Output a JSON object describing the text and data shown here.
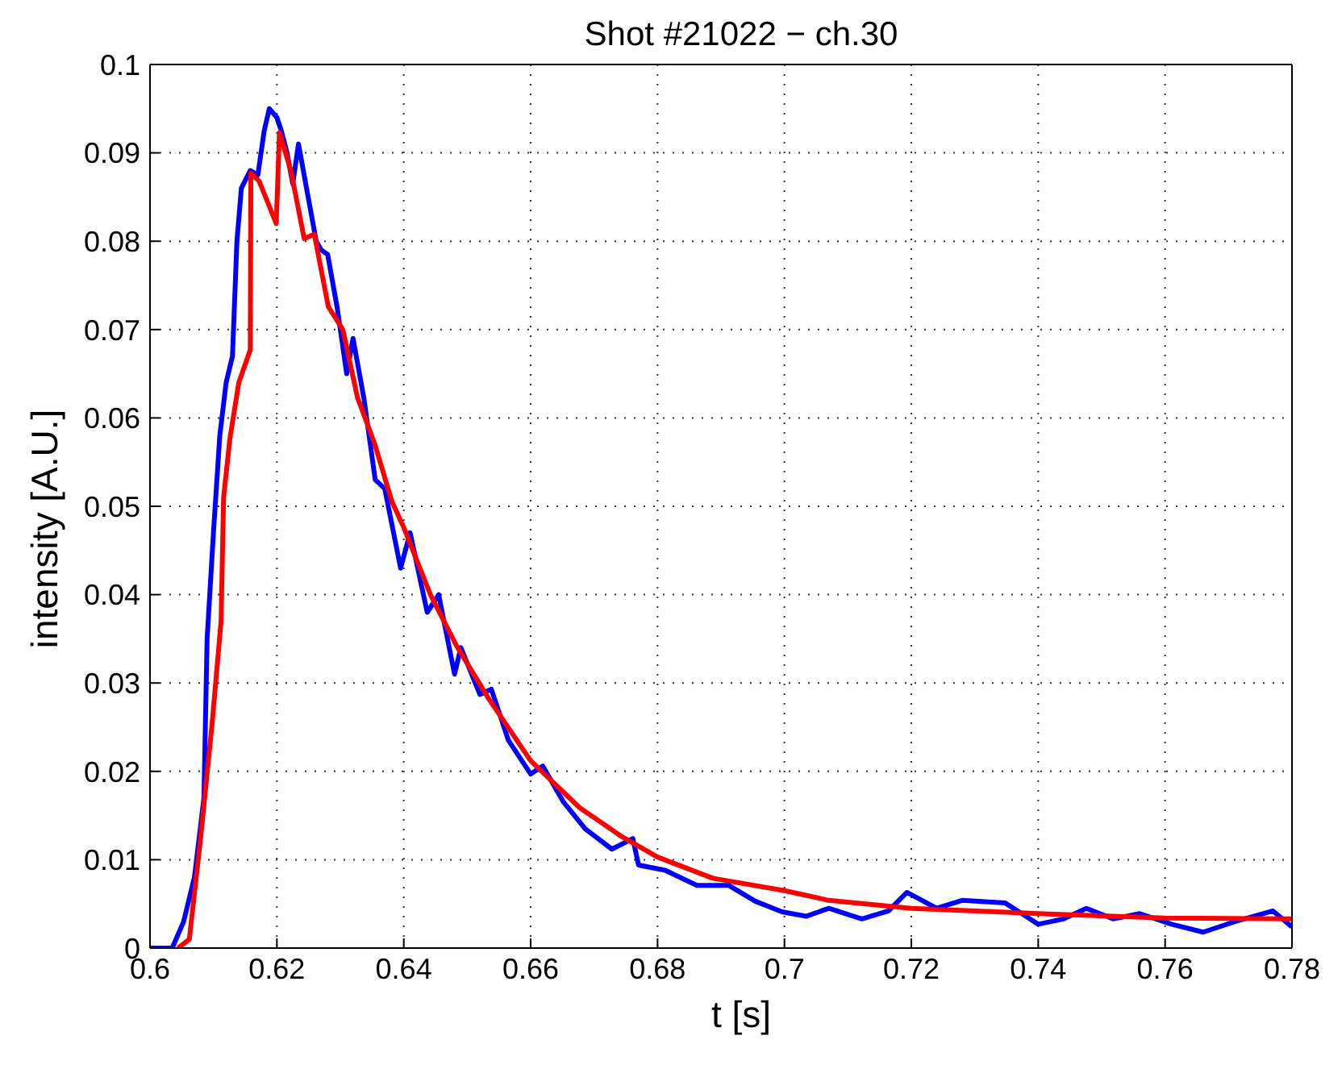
{
  "chart_data": {
    "type": "line",
    "title": "Shot #21022 − ch.30",
    "xlabel": "t [s]",
    "ylabel": "intensity [A.U.]",
    "xlim": [
      0.6,
      0.78
    ],
    "xticks": [
      0.6,
      0.62,
      0.64,
      0.66,
      0.68,
      0.7,
      0.72,
      0.74,
      0.76,
      0.78
    ],
    "ylim": [
      0,
      0.1
    ],
    "yticks": [
      0,
      0.01,
      0.02,
      0.03,
      0.04,
      0.05,
      0.06,
      0.07,
      0.08,
      0.09,
      0.1
    ],
    "grid": true,
    "legend": false,
    "marker": "none",
    "line_style": "solid",
    "series": [
      {
        "color": "#0000ff",
        "x": [
          0.6,
          0.6035,
          0.6053,
          0.607,
          0.6085,
          0.609,
          0.61,
          0.611,
          0.612,
          0.613,
          0.6137,
          0.6144,
          0.6158,
          0.617,
          0.618,
          0.6188,
          0.62,
          0.6207,
          0.6216,
          0.6225,
          0.6234,
          0.6248,
          0.6262,
          0.627,
          0.628,
          0.6295,
          0.631,
          0.632,
          0.6337,
          0.6355,
          0.637,
          0.6395,
          0.641,
          0.6437,
          0.6455,
          0.648,
          0.649,
          0.652,
          0.6538,
          0.6565,
          0.66,
          0.6619,
          0.6652,
          0.6686,
          0.6728,
          0.6761,
          0.677,
          0.6812,
          0.6862,
          0.6912,
          0.6954,
          0.6996,
          0.7034,
          0.707,
          0.7122,
          0.7164,
          0.7193,
          0.724,
          0.728,
          0.7348,
          0.74,
          0.744,
          0.7476,
          0.7518,
          0.756,
          0.761,
          0.766,
          0.771,
          0.777,
          0.78
        ],
        "values": [
          0,
          0,
          0.003,
          0.008,
          0.017,
          0.035,
          0.047,
          0.058,
          0.064,
          0.067,
          0.08,
          0.086,
          0.088,
          0.0875,
          0.0925,
          0.095,
          0.094,
          0.0925,
          0.09,
          0.0865,
          0.091,
          0.0855,
          0.08,
          0.079,
          0.0785,
          0.0725,
          0.065,
          0.069,
          0.0623,
          0.053,
          0.052,
          0.043,
          0.047,
          0.038,
          0.04,
          0.031,
          0.034,
          0.0287,
          0.0293,
          0.0235,
          0.0197,
          0.0206,
          0.0165,
          0.0135,
          0.0112,
          0.0124,
          0.0094,
          0.0088,
          0.0071,
          0.0071,
          0.0053,
          0.0041,
          0.0036,
          0.0045,
          0.0033,
          0.0042,
          0.0063,
          0.0045,
          0.0054,
          0.0051,
          0.0027,
          0.0033,
          0.0045,
          0.0033,
          0.0039,
          0.0027,
          0.0018,
          0.003,
          0.0042,
          0.0024
        ]
      },
      {
        "color": "#ff0000",
        "x": [
          0.6044,
          0.6062,
          0.608,
          0.6098,
          0.6112,
          0.6116,
          0.6126,
          0.614,
          0.6158,
          0.6159,
          0.6172,
          0.6199,
          0.6204,
          0.6222,
          0.6243,
          0.6259,
          0.6281,
          0.6304,
          0.6327,
          0.6354,
          0.6381,
          0.64,
          0.6442,
          0.6484,
          0.6534,
          0.66,
          0.6677,
          0.6744,
          0.68,
          0.6887,
          0.7,
          0.707,
          0.72,
          0.74,
          0.76,
          0.78
        ],
        "values": [
          0,
          0.001,
          0.0126,
          0.0255,
          0.037,
          0.051,
          0.0577,
          0.064,
          0.0677,
          0.0877,
          0.0868,
          0.082,
          0.0923,
          0.088,
          0.0803,
          0.0808,
          0.0726,
          0.07,
          0.0623,
          0.0571,
          0.0506,
          0.0476,
          0.04,
          0.0341,
          0.0282,
          0.0212,
          0.0159,
          0.0126,
          0.0103,
          0.0079,
          0.0065,
          0.0054,
          0.0045,
          0.0039,
          0.0034,
          0.0033
        ]
      }
    ]
  }
}
